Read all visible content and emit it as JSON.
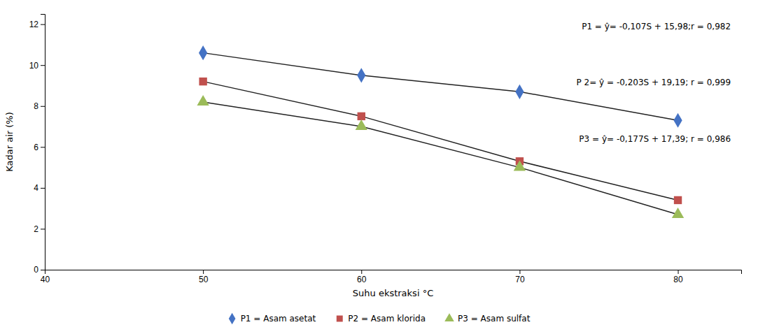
{
  "chart_data": {
    "type": "line",
    "x": [
      50,
      60,
      70,
      80
    ],
    "series": [
      {
        "name": "P1 = Asam asetat",
        "color": "#4472C4",
        "marker": "diamond",
        "values": [
          10.6,
          9.5,
          8.7,
          7.3
        ]
      },
      {
        "name": "P2 = Asam klorida",
        "color": "#C0504D",
        "marker": "square",
        "values": [
          9.2,
          7.5,
          5.3,
          3.4
        ]
      },
      {
        "name": "P3 = Asam sulfat",
        "color": "#9BBB59",
        "marker": "triangle",
        "values": [
          8.2,
          7.0,
          5.0,
          2.7
        ]
      }
    ],
    "annotations": [
      "P1  = ŷ= -0,107S + 15,98;r = 0,982",
      "P 2= ŷ = -0,203S + 19,19; r = 0,999",
      "P3 = ŷ= -0,177S + 17,39; r = 0,986"
    ],
    "xlabel": "Suhu ekstraksi °C",
    "ylabel": "Kadar air (%)",
    "xlim": [
      40,
      84
    ],
    "ylim": [
      0,
      12.5
    ],
    "xticks": [
      40,
      50,
      60,
      70,
      80
    ],
    "yticks": [
      0,
      2,
      4,
      6,
      8,
      10,
      12
    ],
    "grid": false,
    "legend": "bottom"
  }
}
